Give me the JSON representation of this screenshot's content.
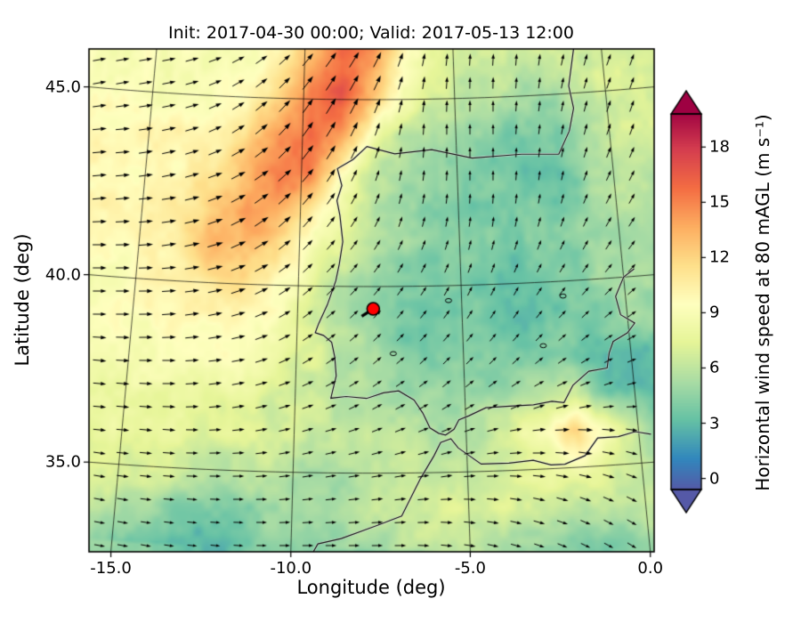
{
  "figure": {
    "title": "Init: 2017-04-30 00:00; Valid: 2017-05-13 12:00",
    "xlabel": "Longitude (deg)",
    "ylabel": "Latitude (deg)",
    "colorbar_label": "Horizontal wind speed at 80 mAGL (m s⁻¹)"
  },
  "chart_data": {
    "type": "heatmap",
    "title": "Init: 2017-04-30 00:00; Valid: 2017-05-13 12:00",
    "xlabel": "Longitude (deg)",
    "ylabel": "Latitude (deg)",
    "x_tick_labels": [
      "-15.0",
      "-10.0",
      "-5.0",
      "0.0"
    ],
    "x_tick_values": [
      -15,
      -10,
      -5,
      0
    ],
    "y_tick_labels": [
      "35.0",
      "40.0",
      "45.0"
    ],
    "y_tick_values": [
      35,
      40,
      45
    ],
    "xlim": [
      -15.6,
      0.1
    ],
    "ylim": [
      32.9,
      46.35
    ],
    "graticule": {
      "meridians": [
        -15,
        -10,
        -5,
        0
      ],
      "parallels": [
        35,
        40,
        45
      ]
    },
    "projection": {
      "name": "lambert_conformal",
      "lat_1": 33,
      "lat_2": 45,
      "lon_0": -7.75
    },
    "colorbar": {
      "label": "Horizontal wind speed at 80 mAGL (m s⁻¹)",
      "tick_labels": [
        "0",
        "3",
        "6",
        "9",
        "12",
        "15",
        "18"
      ],
      "tick_values": [
        0,
        3,
        6,
        9,
        12,
        15,
        18
      ],
      "vmin": -0.6,
      "vmax": 19.8,
      "colormap": "Spectral_r",
      "extend": "both"
    },
    "marker": {
      "lon": -7.7,
      "lat": 39.4,
      "fill": "#ff0000",
      "edge": "#000000"
    },
    "quiver": {
      "color": "#000000",
      "spacing_px": 26
    },
    "wind_field": {
      "lons": [
        -15.75,
        -14.75,
        -13.75,
        -12.75,
        -11.75,
        -10.75,
        -9.75,
        -8.75,
        -7.75,
        -6.75,
        -5.75,
        -4.75,
        -3.75,
        -2.75,
        -1.75,
        -0.75,
        0.25
      ],
      "lats": [
        46.4,
        45,
        44,
        43,
        42,
        41,
        40,
        39,
        38,
        37,
        36,
        35,
        34,
        33,
        32.9
      ],
      "speed": [
        [
          9,
          9,
          9,
          9,
          9,
          10,
          13,
          16,
          15,
          11,
          8,
          7,
          7,
          7,
          7,
          7,
          7
        ],
        [
          9,
          9,
          9,
          9,
          10,
          12,
          15,
          17,
          13,
          9,
          7,
          6,
          6,
          5,
          5,
          6,
          7
        ],
        [
          10,
          10,
          10,
          10,
          12,
          14,
          16,
          14,
          9,
          6,
          5,
          5,
          4,
          4,
          4,
          6,
          7
        ],
        [
          10,
          10,
          10,
          11,
          13,
          15,
          15,
          10,
          6,
          5,
          5,
          4,
          4,
          3,
          3,
          5,
          6
        ],
        [
          10,
          10,
          11,
          12,
          14,
          14,
          11,
          8,
          6,
          5,
          4,
          4,
          4,
          4,
          4,
          5,
          6
        ],
        [
          10,
          10,
          11,
          13,
          13,
          12,
          9,
          7,
          6,
          5,
          4,
          4,
          4,
          4,
          4,
          5,
          5
        ],
        [
          9,
          10,
          10,
          11,
          12,
          10,
          8,
          6,
          5,
          4,
          4,
          4,
          3,
          3,
          4,
          5,
          5
        ],
        [
          9,
          9,
          10,
          10,
          10,
          9,
          7,
          6,
          5,
          4,
          4,
          4,
          3,
          3,
          4,
          4,
          5
        ],
        [
          9,
          9,
          9,
          9,
          9,
          8,
          7,
          6,
          5,
          4,
          4,
          4,
          4,
          4,
          4,
          3,
          3
        ],
        [
          8,
          8,
          8,
          8,
          8,
          7,
          7,
          6,
          5,
          5,
          5,
          5,
          5,
          6,
          7,
          3,
          3
        ],
        [
          8,
          8,
          8,
          7,
          7,
          7,
          6,
          6,
          6,
          6,
          5,
          6,
          7,
          9,
          12,
          8,
          5
        ],
        [
          7,
          7,
          7,
          6,
          6,
          6,
          5,
          5,
          6,
          6,
          6,
          6,
          7,
          8,
          9,
          7,
          6
        ],
        [
          6,
          6,
          5,
          4,
          4,
          5,
          5,
          5,
          6,
          6,
          7,
          7,
          7,
          7,
          6,
          6,
          6
        ],
        [
          5,
          4,
          3,
          3,
          3,
          4,
          5,
          5,
          5,
          6,
          6,
          6,
          5,
          5,
          4,
          4,
          5
        ],
        [
          5,
          5,
          4,
          3,
          3,
          4,
          5,
          4,
          4,
          5,
          6,
          6,
          5,
          4,
          4,
          4,
          5
        ]
      ],
      "direction_deg_math": [
        [
          10,
          10,
          15,
          20,
          30,
          40,
          50,
          55,
          60,
          70,
          80,
          85,
          85,
          85,
          80,
          75,
          70
        ],
        [
          10,
          10,
          15,
          25,
          35,
          45,
          55,
          60,
          65,
          75,
          85,
          90,
          90,
          85,
          80,
          75,
          70
        ],
        [
          5,
          10,
          15,
          25,
          35,
          45,
          55,
          60,
          70,
          80,
          90,
          90,
          90,
          85,
          80,
          75,
          70
        ],
        [
          5,
          10,
          15,
          20,
          30,
          40,
          50,
          60,
          70,
          80,
          85,
          90,
          90,
          85,
          80,
          70,
          65
        ],
        [
          5,
          5,
          10,
          20,
          30,
          40,
          50,
          55,
          65,
          75,
          80,
          85,
          85,
          80,
          75,
          65,
          60
        ],
        [
          0,
          5,
          10,
          15,
          25,
          35,
          45,
          50,
          55,
          65,
          70,
          75,
          75,
          70,
          65,
          60,
          55
        ],
        [
          0,
          0,
          5,
          10,
          20,
          30,
          40,
          45,
          50,
          55,
          60,
          65,
          65,
          60,
          55,
          50,
          45
        ],
        [
          0,
          0,
          5,
          10,
          15,
          25,
          35,
          40,
          45,
          50,
          50,
          55,
          55,
          50,
          45,
          40,
          35
        ],
        [
          -5,
          0,
          0,
          5,
          10,
          20,
          30,
          35,
          40,
          40,
          45,
          45,
          45,
          40,
          35,
          30,
          25
        ],
        [
          -5,
          -5,
          0,
          5,
          10,
          15,
          20,
          25,
          30,
          30,
          35,
          35,
          30,
          25,
          20,
          15,
          10
        ],
        [
          -5,
          -5,
          -5,
          0,
          5,
          10,
          15,
          15,
          20,
          20,
          20,
          15,
          10,
          5,
          0,
          -5,
          -10
        ],
        [
          -10,
          -5,
          -5,
          0,
          0,
          5,
          10,
          10,
          10,
          10,
          10,
          5,
          0,
          -5,
          -10,
          -15,
          -20
        ],
        [
          -10,
          -10,
          -5,
          -5,
          0,
          0,
          5,
          5,
          5,
          5,
          0,
          -5,
          -10,
          -15,
          -20,
          -25,
          -30
        ],
        [
          -10,
          -10,
          -10,
          -5,
          -5,
          0,
          0,
          0,
          0,
          0,
          -5,
          -10,
          -15,
          -20,
          -25,
          -30,
          -35
        ],
        [
          -10,
          -10,
          -10,
          -5,
          -5,
          0,
          0,
          0,
          0,
          0,
          -5,
          -10,
          -15,
          -20,
          -25,
          -30,
          -35
        ]
      ]
    }
  },
  "colors": {
    "coastline": "#000000",
    "coastline_halo": "#ffffff",
    "quiver": "#000000",
    "marker_fill": "#ff0000",
    "background": "#ffffff"
  }
}
